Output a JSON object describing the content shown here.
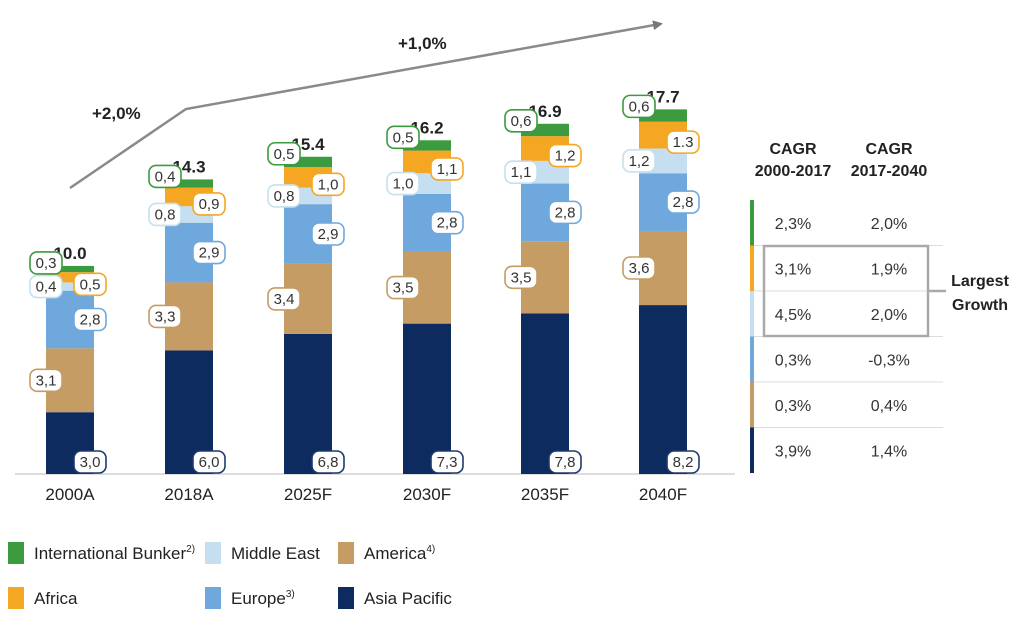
{
  "chart_data": {
    "type": "bar",
    "stacked": true,
    "categories": [
      "2000A",
      "2018A",
      "2025F",
      "2030F",
      "2035F",
      "2040F"
    ],
    "series": [
      {
        "name": "Asia Pacific",
        "color": "#0d2b5e",
        "values": [
          3.0,
          6.0,
          6.8,
          7.3,
          7.8,
          8.2
        ],
        "labels": [
          "3,0",
          "6,0",
          "6,8",
          "7,3",
          "7,8",
          "8,2"
        ]
      },
      {
        "name": "America",
        "footnote": "4)",
        "color": "#c59d64",
        "values": [
          3.1,
          3.3,
          3.4,
          3.5,
          3.5,
          3.6
        ],
        "labels": [
          "3,1",
          "3,3",
          "3,4",
          "3,5",
          "3,5",
          "3,6"
        ]
      },
      {
        "name": "Europe",
        "footnote": "3)",
        "color": "#6fa8dc",
        "values": [
          2.8,
          2.9,
          2.9,
          2.8,
          2.8,
          2.8
        ],
        "labels": [
          "2,8",
          "2,9",
          "2,9",
          "2,8",
          "2,8",
          "2,8"
        ]
      },
      {
        "name": "Middle East",
        "color": "#c5dff0",
        "values": [
          0.4,
          0.8,
          0.8,
          1.0,
          1.1,
          1.2
        ],
        "labels": [
          "0,4",
          "0,8",
          "0,8",
          "1,0",
          "1,1",
          "1,2"
        ]
      },
      {
        "name": "Africa",
        "color": "#f5a623",
        "values": [
          0.5,
          0.9,
          1.0,
          1.1,
          1.2,
          1.3
        ],
        "labels": [
          "0,5",
          "0,9",
          "1,0",
          "1,1",
          "1,2",
          "1.3"
        ]
      },
      {
        "name": "International Bunker",
        "footnote": "2)",
        "color": "#3c9a3f",
        "values": [
          0.3,
          0.4,
          0.5,
          0.5,
          0.6,
          0.6
        ],
        "labels": [
          "0,3",
          "0,4",
          "0,5",
          "0,5",
          "0,6",
          "0,6"
        ]
      }
    ],
    "totals": [
      "10.0",
      "14.3",
      "15.4",
      "16.2",
      "16.9",
      "17.7"
    ],
    "growth_annotations": [
      "+2,0%",
      "+1,0%"
    ],
    "legend": [
      [
        "International Bunker",
        "Middle East",
        "America"
      ],
      [
        "Africa",
        "Europe",
        "Asia Pacific"
      ]
    ],
    "legend_position": "bottom",
    "grid": false,
    "ylim": [
      0,
      20
    ]
  },
  "cagr_table": {
    "headers": [
      [
        "CAGR",
        "2000-2017"
      ],
      [
        "CAGR",
        "2017-2040"
      ]
    ],
    "rows": [
      {
        "series": "International Bunker",
        "a": "2,3%",
        "b": "2,0%"
      },
      {
        "series": "Africa",
        "a": "3,1%",
        "b": "1,9%"
      },
      {
        "series": "Middle East",
        "a": "4,5%",
        "b": "2,0%"
      },
      {
        "series": "Europe",
        "a": "0,3%",
        "b": "-0,3%"
      },
      {
        "series": "America",
        "a": "0,3%",
        "b": "0,4%"
      },
      {
        "series": "Asia Pacific",
        "a": "3,9%",
        "b": "1,4%"
      }
    ],
    "callout": [
      "Largest",
      "Growth"
    ]
  }
}
